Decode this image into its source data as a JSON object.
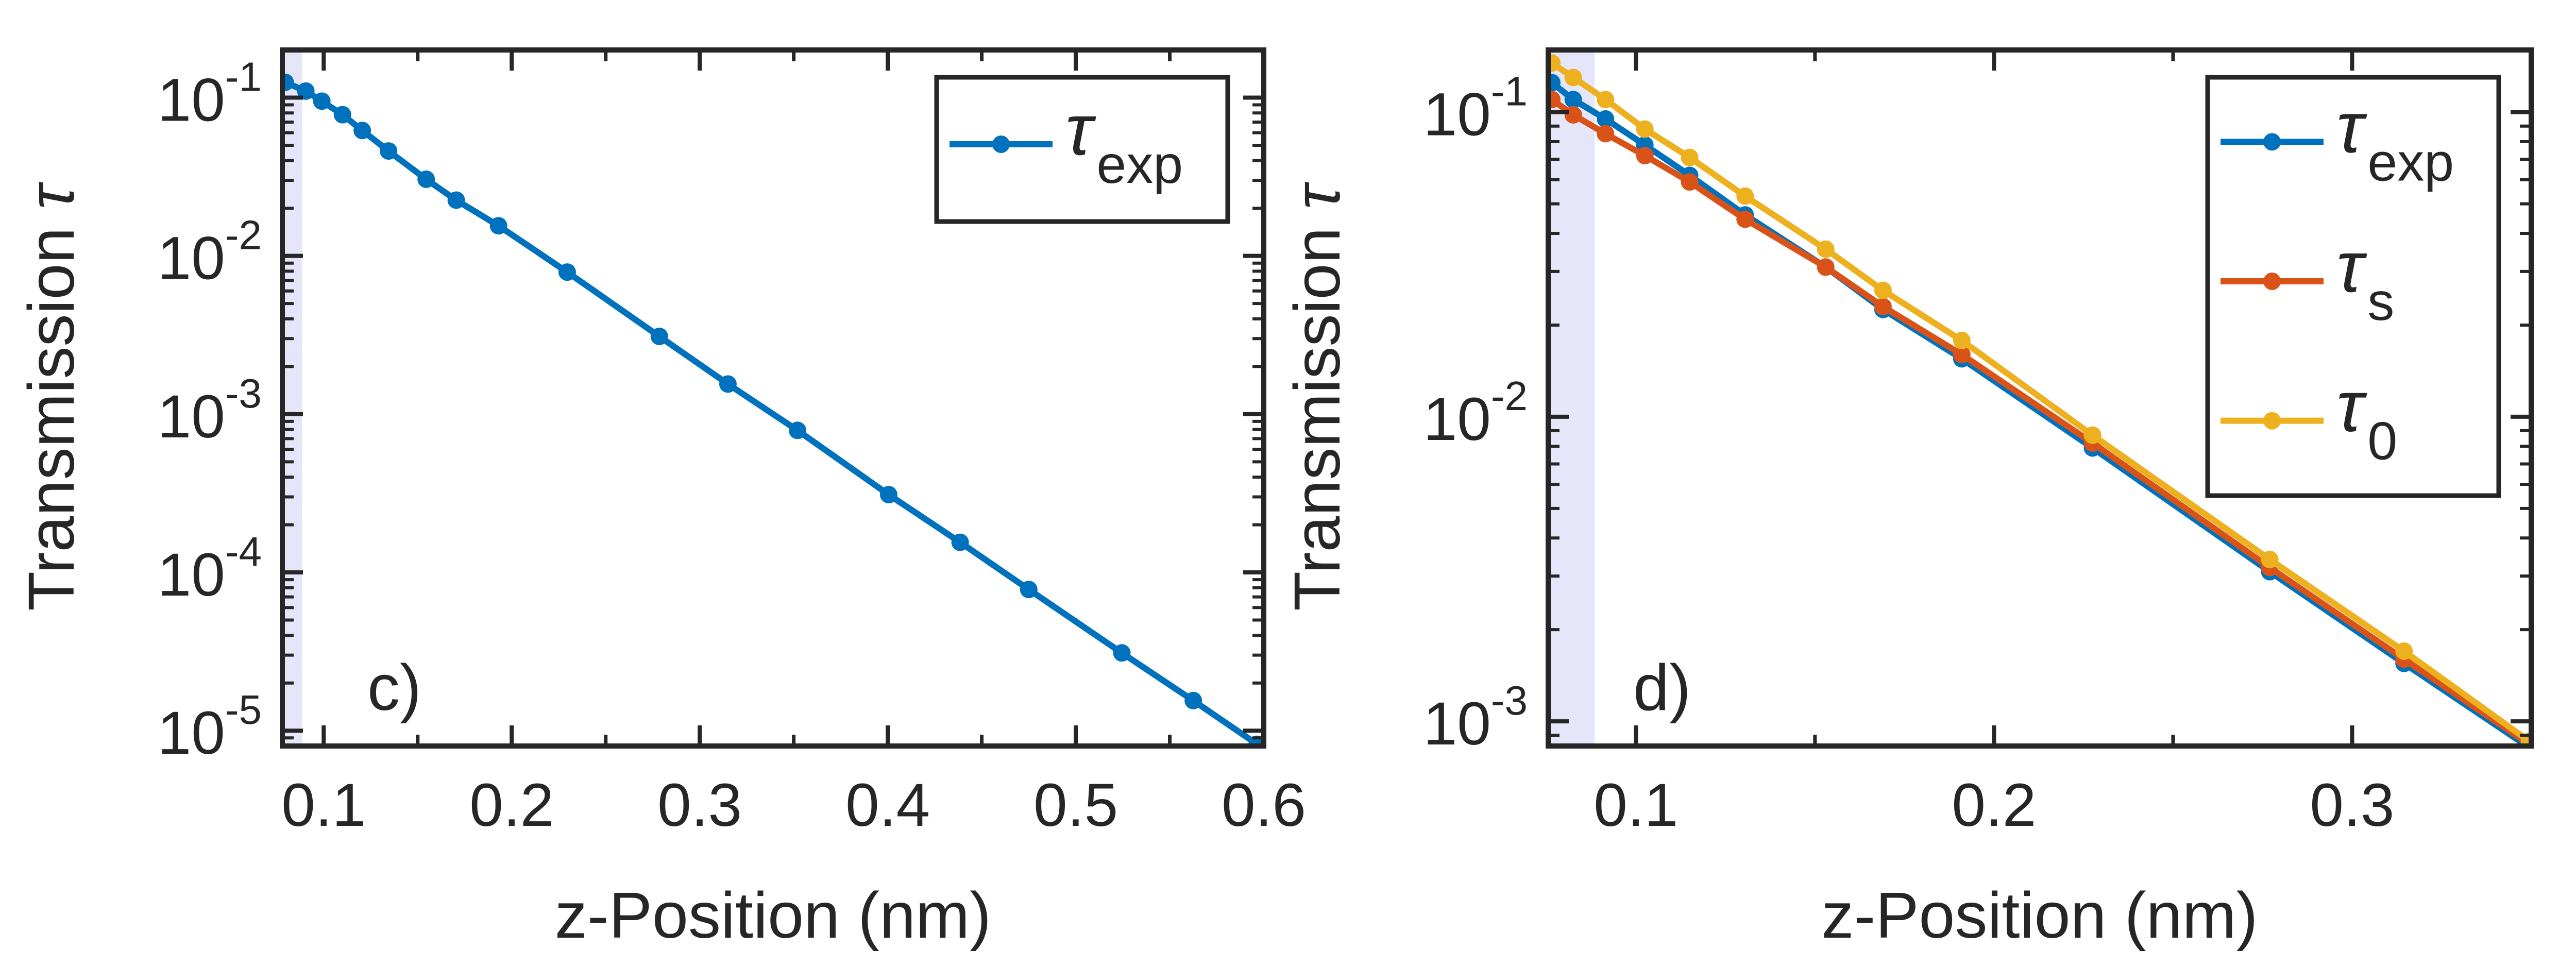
{
  "colors": {
    "exp": "#0072BD",
    "s": "#D95319",
    "zero": "#EDB120",
    "axis": "#262626",
    "shade": "#E6E6FA"
  },
  "chart_data": [
    {
      "type": "line",
      "panel_label": "c)",
      "xlabel": "z-Position (nm)",
      "ylabel": "Transmission ",
      "ylabel_symbol": "τ",
      "yscale": "log",
      "xlim": [
        0.078,
        0.6
      ],
      "ylim": [
        8e-06,
        0.2
      ],
      "shaded_region": [
        0.078,
        0.0885
      ],
      "x_ticks": [
        {
          "value": 0.1,
          "label": "0.1"
        },
        {
          "value": 0.2,
          "label": "0.2"
        },
        {
          "value": 0.3,
          "label": "0.3"
        },
        {
          "value": 0.4,
          "label": "0.4"
        },
        {
          "value": 0.5,
          "label": "0.5"
        },
        {
          "value": 0.6,
          "label": "0.6"
        }
      ],
      "y_ticks": [
        {
          "value": 0.1,
          "base": "10",
          "exp": "-1"
        },
        {
          "value": 0.01,
          "base": "10",
          "exp": "-2"
        },
        {
          "value": 0.001,
          "base": "10",
          "exp": "-3"
        },
        {
          "value": 0.0001,
          "base": "10",
          "exp": "-4"
        },
        {
          "value": 1e-05,
          "base": "10",
          "exp": "-5"
        }
      ],
      "legend": {
        "position": "top-right"
      },
      "series": [
        {
          "name": "exp",
          "symbol": "τ",
          "subscript": "exp",
          "color_key": "exp",
          "x": [
            0.0795,
            0.0905,
            0.099,
            0.11,
            0.1205,
            0.1345,
            0.1545,
            0.1705,
            0.193,
            0.2295,
            0.2785,
            0.315,
            0.352,
            0.4005,
            0.4385,
            0.475,
            0.5245,
            0.5625,
            0.5965
          ],
          "y": [
            0.125,
            0.11,
            0.095,
            0.078,
            0.062,
            0.046,
            0.0305,
            0.0225,
            0.0155,
            0.0079,
            0.0031,
            0.00155,
            0.00079,
            0.00031,
            0.000155,
            7.8e-05,
            3.1e-05,
            1.55e-05,
            8.2e-06
          ]
        }
      ]
    },
    {
      "type": "line",
      "panel_label": "d)",
      "xlabel": "z-Position (nm)",
      "ylabel": "Transmission ",
      "ylabel_symbol": "τ",
      "yscale": "log",
      "xlim": [
        0.0755,
        0.35
      ],
      "ylim": [
        0.00083,
        0.16
      ],
      "shaded_region": [
        0.0755,
        0.0885
      ],
      "x_ticks": [
        {
          "value": 0.1,
          "label": "0.1"
        },
        {
          "value": 0.2,
          "label": "0.2"
        },
        {
          "value": 0.3,
          "label": "0.3"
        }
      ],
      "y_ticks": [
        {
          "value": 0.1,
          "base": "10",
          "exp": "-1"
        },
        {
          "value": 0.01,
          "base": "10",
          "exp": "-2"
        },
        {
          "value": 0.001,
          "base": "10",
          "exp": "-3"
        }
      ],
      "legend": {
        "position": "top-right"
      },
      "series": [
        {
          "name": "exp",
          "symbol": "τ",
          "subscript": "exp",
          "color_key": "exp",
          "x": [
            0.0765,
            0.0825,
            0.0915,
            0.1025,
            0.115,
            0.1305,
            0.153,
            0.169,
            0.191,
            0.2275,
            0.277,
            0.3145,
            0.3495
          ],
          "y": [
            0.125,
            0.11,
            0.095,
            0.078,
            0.062,
            0.046,
            0.031,
            0.0225,
            0.0155,
            0.0079,
            0.0031,
            0.00155,
            0.00082
          ]
        },
        {
          "name": "s",
          "symbol": "τ",
          "subscript": "s",
          "color_key": "s",
          "x": [
            0.0765,
            0.0825,
            0.0915,
            0.1025,
            0.115,
            0.1305,
            0.153,
            0.169,
            0.191,
            0.2275,
            0.277,
            0.3145,
            0.3495
          ],
          "y": [
            0.11,
            0.098,
            0.085,
            0.072,
            0.059,
            0.0445,
            0.031,
            0.023,
            0.016,
            0.0082,
            0.0032,
            0.0016,
            0.00084
          ]
        },
        {
          "name": "zero",
          "symbol": "τ",
          "subscript": "0",
          "color_key": "zero",
          "x": [
            0.0765,
            0.0825,
            0.0915,
            0.1025,
            0.115,
            0.1305,
            0.153,
            0.169,
            0.191,
            0.2275,
            0.277,
            0.3145,
            0.3495
          ],
          "y": [
            0.145,
            0.13,
            0.11,
            0.088,
            0.071,
            0.053,
            0.0355,
            0.026,
            0.0178,
            0.0087,
            0.0034,
            0.0017,
            0.00086
          ]
        }
      ]
    }
  ]
}
